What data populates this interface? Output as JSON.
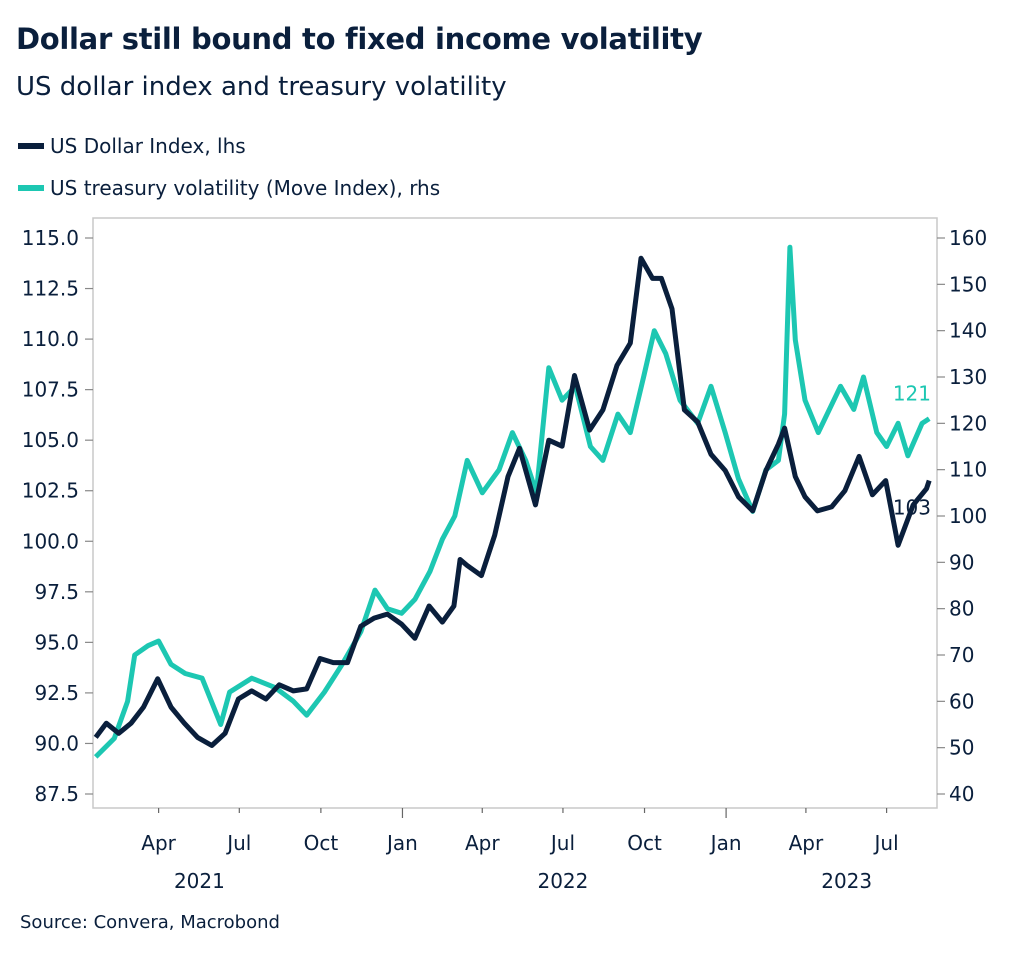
{
  "chart_data": {
    "type": "line",
    "title": "Dollar still bound to fixed income volatility",
    "subtitle": "US dollar index and treasury volatility",
    "source": "Source: Convera, Macrobond",
    "colors": {
      "dxy": "#0a1f3c",
      "move": "#1dc7b2"
    },
    "legend_placement": "top-left",
    "grid": false,
    "y_left": {
      "ylim": [
        87.5,
        115.0
      ],
      "ticks": [
        "87.5",
        "90.0",
        "92.5",
        "95.0",
        "97.5",
        "100.0",
        "102.5",
        "105.0",
        "107.5",
        "110.0",
        "112.5",
        "115.0"
      ]
    },
    "y_right": {
      "ylim": [
        40,
        160
      ],
      "ticks": [
        "40",
        "50",
        "60",
        "70",
        "80",
        "90",
        "100",
        "110",
        "120",
        "130",
        "140",
        "150",
        "160"
      ]
    },
    "x_ticks": [
      {
        "date": "2021-04-01",
        "label": "Apr"
      },
      {
        "date": "2021-07-01",
        "label": "Jul"
      },
      {
        "date": "2021-10-01",
        "label": "Oct"
      },
      {
        "date": "2022-01-01",
        "label": "Jan"
      },
      {
        "date": "2022-04-01",
        "label": "Apr"
      },
      {
        "date": "2022-07-01",
        "label": "Jul"
      },
      {
        "date": "2022-10-01",
        "label": "Oct"
      },
      {
        "date": "2023-01-01",
        "label": "Jan"
      },
      {
        "date": "2023-04-01",
        "label": "Apr"
      },
      {
        "date": "2023-07-01",
        "label": "Jul"
      }
    ],
    "x_years": [
      {
        "date": "2021-05-17",
        "label": "2021"
      },
      {
        "date": "2022-07-01",
        "label": "2022"
      },
      {
        "date": "2023-05-17",
        "label": "2023"
      }
    ],
    "end_labels": {
      "move": "121",
      "dxy": "103"
    },
    "series": [
      {
        "name": "US Dollar Index, lhs",
        "axis": "left",
        "key": "dxy",
        "x": [
          "2021-01-20",
          "2021-02-01",
          "2021-02-15",
          "2021-03-01",
          "2021-03-15",
          "2021-03-31",
          "2021-04-15",
          "2021-04-30",
          "2021-05-15",
          "2021-05-31",
          "2021-06-15",
          "2021-06-30",
          "2021-07-15",
          "2021-07-31",
          "2021-08-15",
          "2021-08-31",
          "2021-09-15",
          "2021-09-30",
          "2021-10-15",
          "2021-10-31",
          "2021-11-15",
          "2021-11-30",
          "2021-12-15",
          "2021-12-31",
          "2022-01-15",
          "2022-01-31",
          "2022-02-15",
          "2022-02-28",
          "2022-03-07",
          "2022-03-15",
          "2022-03-31",
          "2022-04-15",
          "2022-04-30",
          "2022-05-13",
          "2022-05-31",
          "2022-06-15",
          "2022-06-30",
          "2022-07-14",
          "2022-07-31",
          "2022-08-15",
          "2022-08-31",
          "2022-09-15",
          "2022-09-27",
          "2022-10-10",
          "2022-10-20",
          "2022-11-01",
          "2022-11-15",
          "2022-11-30",
          "2022-12-15",
          "2022-12-31",
          "2023-01-15",
          "2023-01-31",
          "2023-02-15",
          "2023-03-01",
          "2023-03-08",
          "2023-03-20",
          "2023-03-31",
          "2023-04-14",
          "2023-04-30",
          "2023-05-15",
          "2023-05-31",
          "2023-06-15",
          "2023-06-30",
          "2023-07-14",
          "2023-07-31",
          "2023-08-15",
          "2023-08-18"
        ],
        "values": [
          90.3,
          91.0,
          90.5,
          91.0,
          91.8,
          93.2,
          91.8,
          91.0,
          90.3,
          89.9,
          90.5,
          92.2,
          92.6,
          92.2,
          92.9,
          92.6,
          92.7,
          94.2,
          94.0,
          94.0,
          95.8,
          96.2,
          96.4,
          95.9,
          95.2,
          96.8,
          96.0,
          96.8,
          99.1,
          98.8,
          98.3,
          100.3,
          103.2,
          104.6,
          101.8,
          105.0,
          104.7,
          108.2,
          105.5,
          106.5,
          108.7,
          109.8,
          114.0,
          113.0,
          113.0,
          111.5,
          106.5,
          105.9,
          104.3,
          103.5,
          102.2,
          101.5,
          103.5,
          104.8,
          105.6,
          103.2,
          102.2,
          101.5,
          101.7,
          102.5,
          104.2,
          102.3,
          103.0,
          99.8,
          101.8,
          102.6,
          103.0
        ]
      },
      {
        "name": "US treasury volatility (Move Index), rhs",
        "axis": "right",
        "key": "move",
        "x": [
          "2021-01-20",
          "2021-02-10",
          "2021-02-25",
          "2021-03-05",
          "2021-03-20",
          "2021-04-01",
          "2021-04-15",
          "2021-05-01",
          "2021-05-20",
          "2021-06-10",
          "2021-06-20",
          "2021-07-15",
          "2021-08-10",
          "2021-08-31",
          "2021-09-15",
          "2021-10-05",
          "2021-10-25",
          "2021-11-15",
          "2021-12-01",
          "2021-12-15",
          "2021-12-31",
          "2022-01-15",
          "2022-02-01",
          "2022-02-15",
          "2022-03-01",
          "2022-03-15",
          "2022-04-01",
          "2022-04-20",
          "2022-05-05",
          "2022-05-20",
          "2022-06-01",
          "2022-06-15",
          "2022-06-30",
          "2022-07-15",
          "2022-08-01",
          "2022-08-15",
          "2022-09-01",
          "2022-09-15",
          "2022-09-30",
          "2022-10-12",
          "2022-10-25",
          "2022-11-10",
          "2022-11-30",
          "2022-12-15",
          "2022-12-31",
          "2023-01-15",
          "2023-01-31",
          "2023-02-15",
          "2023-03-01",
          "2023-03-08",
          "2023-03-14",
          "2023-03-20",
          "2023-03-31",
          "2023-04-15",
          "2023-04-30",
          "2023-05-10",
          "2023-05-25",
          "2023-06-05",
          "2023-06-20",
          "2023-07-01",
          "2023-07-14",
          "2023-07-25",
          "2023-08-10",
          "2023-08-18"
        ],
        "values": [
          48,
          52,
          60,
          70,
          72,
          73,
          68,
          66,
          65,
          55,
          62,
          65,
          63,
          60,
          57,
          62,
          68,
          75,
          84,
          80,
          79,
          82,
          88,
          95,
          100,
          112,
          105,
          110,
          118,
          112,
          105,
          132,
          125,
          128,
          115,
          112,
          122,
          118,
          130,
          140,
          135,
          125,
          120,
          128,
          118,
          108,
          101,
          110,
          112,
          122,
          158,
          138,
          125,
          118,
          124,
          128,
          123,
          130,
          118,
          115,
          120,
          113,
          120,
          121
        ]
      }
    ]
  }
}
